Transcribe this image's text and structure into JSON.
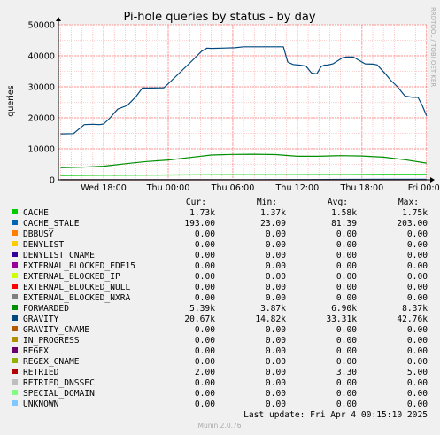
{
  "chart_data": {
    "type": "line",
    "title": "Pi-hole queries by status - by day",
    "ylabel": "queries",
    "side_label": "RRDTOOL / TOBI OETIKER",
    "footer": "Munin 2.0.76",
    "last_update": "Last update: Fri Apr  4 00:15:10 2025",
    "ylim": [
      0,
      50000
    ],
    "yticks": [
      "0",
      "10000",
      "20000",
      "30000",
      "40000",
      "50000"
    ],
    "xtick_labels": [
      "Wed 18:00",
      "Thu 00:00",
      "Thu 06:00",
      "Thu 12:00",
      "Thu 18:00",
      "Fri 00:00"
    ],
    "xtick_hours": [
      18,
      24,
      30,
      36,
      42,
      48
    ],
    "x_hours_range": [
      13.8,
      48.1
    ],
    "column_headers": [
      "Cur:",
      "Min:",
      "Avg:",
      "Max:"
    ],
    "series": [
      {
        "name": "CACHE",
        "color": "#00cc00",
        "cur": "1.73k",
        "min": "1.37k",
        "avg": "1.58k",
        "max": "1.75k",
        "x": [
          14,
          17,
          20,
          23,
          26,
          29,
          32,
          35,
          38,
          41,
          44,
          47,
          48
        ],
        "y": [
          1400,
          1450,
          1500,
          1550,
          1600,
          1650,
          1650,
          1650,
          1700,
          1700,
          1730,
          1730,
          1730
        ]
      },
      {
        "name": "CACHE_STALE",
        "color": "#0066b3",
        "cur": "193.00",
        "min": "23.09",
        "avg": "81.39",
        "max": "203.00",
        "x": [
          14,
          20,
          26,
          32,
          37,
          40,
          44,
          48
        ],
        "y": [
          30,
          40,
          50,
          60,
          80,
          150,
          190,
          193
        ]
      },
      {
        "name": "DBBUSY",
        "color": "#ff8000",
        "cur": "0.00",
        "min": "0.00",
        "avg": "0.00",
        "max": "0.00",
        "x": [],
        "y": []
      },
      {
        "name": "DENYLIST",
        "color": "#ffcc00",
        "cur": "0.00",
        "min": "0.00",
        "avg": "0.00",
        "max": "0.00",
        "x": [],
        "y": []
      },
      {
        "name": "DENYLIST_CNAME",
        "color": "#330099",
        "cur": "0.00",
        "min": "0.00",
        "avg": "0.00",
        "max": "0.00",
        "x": [],
        "y": []
      },
      {
        "name": "EXTERNAL_BLOCKED_EDE15",
        "color": "#990099",
        "cur": "0.00",
        "min": "0.00",
        "avg": "0.00",
        "max": "0.00",
        "x": [],
        "y": []
      },
      {
        "name": "EXTERNAL_BLOCKED_IP",
        "color": "#ccff00",
        "cur": "0.00",
        "min": "0.00",
        "avg": "0.00",
        "max": "0.00",
        "x": [],
        "y": []
      },
      {
        "name": "EXTERNAL_BLOCKED_NULL",
        "color": "#ff0000",
        "cur": "0.00",
        "min": "0.00",
        "avg": "0.00",
        "max": "0.00",
        "x": [],
        "y": []
      },
      {
        "name": "EXTERNAL_BLOCKED_NXRA",
        "color": "#808080",
        "cur": "0.00",
        "min": "0.00",
        "avg": "0.00",
        "max": "0.00",
        "x": [],
        "y": []
      },
      {
        "name": "FORWARDED",
        "color": "#008f00",
        "cur": "5.39k",
        "min": "3.87k",
        "avg": "6.90k",
        "max": "8.37k",
        "x": [
          14,
          16,
          18,
          20,
          22,
          24,
          26,
          28,
          30,
          32,
          34,
          36,
          38,
          40,
          42,
          44,
          46,
          48
        ],
        "y": [
          3900,
          4100,
          4400,
          5200,
          5900,
          6400,
          7200,
          8000,
          8200,
          8250,
          8150,
          7600,
          7600,
          7800,
          7700,
          7300,
          6500,
          5400
        ]
      },
      {
        "name": "GRAVITY",
        "color": "#00487d",
        "cur": "20.67k",
        "min": "14.82k",
        "avg": "33.31k",
        "max": "42.76k",
        "x": [
          14.0,
          15.2,
          16.2,
          17.0,
          17.6,
          18.0,
          18.6,
          19.3,
          20.2,
          21.0,
          21.6,
          22.4,
          23.6,
          24.3,
          25.2,
          26.1,
          27.1,
          27.6,
          28.0,
          30.2,
          31.0,
          33.5,
          34.7,
          35.1,
          35.6,
          36.2,
          36.8,
          37.3,
          37.8,
          38.2,
          38.5,
          38.8,
          39.3,
          40.2,
          40.6,
          41.2,
          42.3,
          43.0,
          43.4,
          44.1,
          44.7,
          45.3,
          46.0,
          46.7,
          47.2,
          47.6,
          48.0
        ],
        "y": [
          14820,
          14900,
          17800,
          17900,
          17800,
          18000,
          20000,
          22800,
          24000,
          26800,
          29600,
          29600,
          29700,
          32000,
          35000,
          38000,
          41500,
          42500,
          42400,
          42600,
          42900,
          42900,
          42900,
          38000,
          37200,
          37000,
          36700,
          34500,
          34200,
          36500,
          37000,
          37000,
          37400,
          39400,
          39600,
          39600,
          37400,
          37300,
          37100,
          34500,
          32000,
          30000,
          27000,
          26600,
          26600,
          24000,
          20670
        ]
      },
      {
        "name": "GRAVITY_CNAME",
        "color": "#b35a00",
        "cur": "0.00",
        "min": "0.00",
        "avg": "0.00",
        "max": "0.00",
        "x": [],
        "y": []
      },
      {
        "name": "IN_PROGRESS",
        "color": "#b38f00",
        "cur": "0.00",
        "min": "0.00",
        "avg": "0.00",
        "max": "0.00",
        "x": [],
        "y": []
      },
      {
        "name": "REGEX",
        "color": "#6b006b",
        "cur": "0.00",
        "min": "0.00",
        "avg": "0.00",
        "max": "0.00",
        "x": [],
        "y": []
      },
      {
        "name": "REGEX_CNAME",
        "color": "#8fb300",
        "cur": "0.00",
        "min": "0.00",
        "avg": "0.00",
        "max": "0.00",
        "x": [],
        "y": []
      },
      {
        "name": "RETRIED",
        "color": "#b30000",
        "cur": "2.00",
        "min": "0.00",
        "avg": "3.30",
        "max": "5.00",
        "x": [
          14,
          24,
          34,
          44,
          48
        ],
        "y": [
          2,
          3,
          4,
          3,
          2
        ]
      },
      {
        "name": "RETRIED_DNSSEC",
        "color": "#bebebe",
        "cur": "0.00",
        "min": "0.00",
        "avg": "0.00",
        "max": "0.00",
        "x": [],
        "y": []
      },
      {
        "name": "SPECIAL_DOMAIN",
        "color": "#80ff80",
        "cur": "0.00",
        "min": "0.00",
        "avg": "0.00",
        "max": "0.00",
        "x": [],
        "y": []
      },
      {
        "name": "UNKNOWN",
        "color": "#80c9ff",
        "cur": "0.00",
        "min": "0.00",
        "avg": "0.00",
        "max": "0.00",
        "x": [],
        "y": []
      }
    ]
  }
}
